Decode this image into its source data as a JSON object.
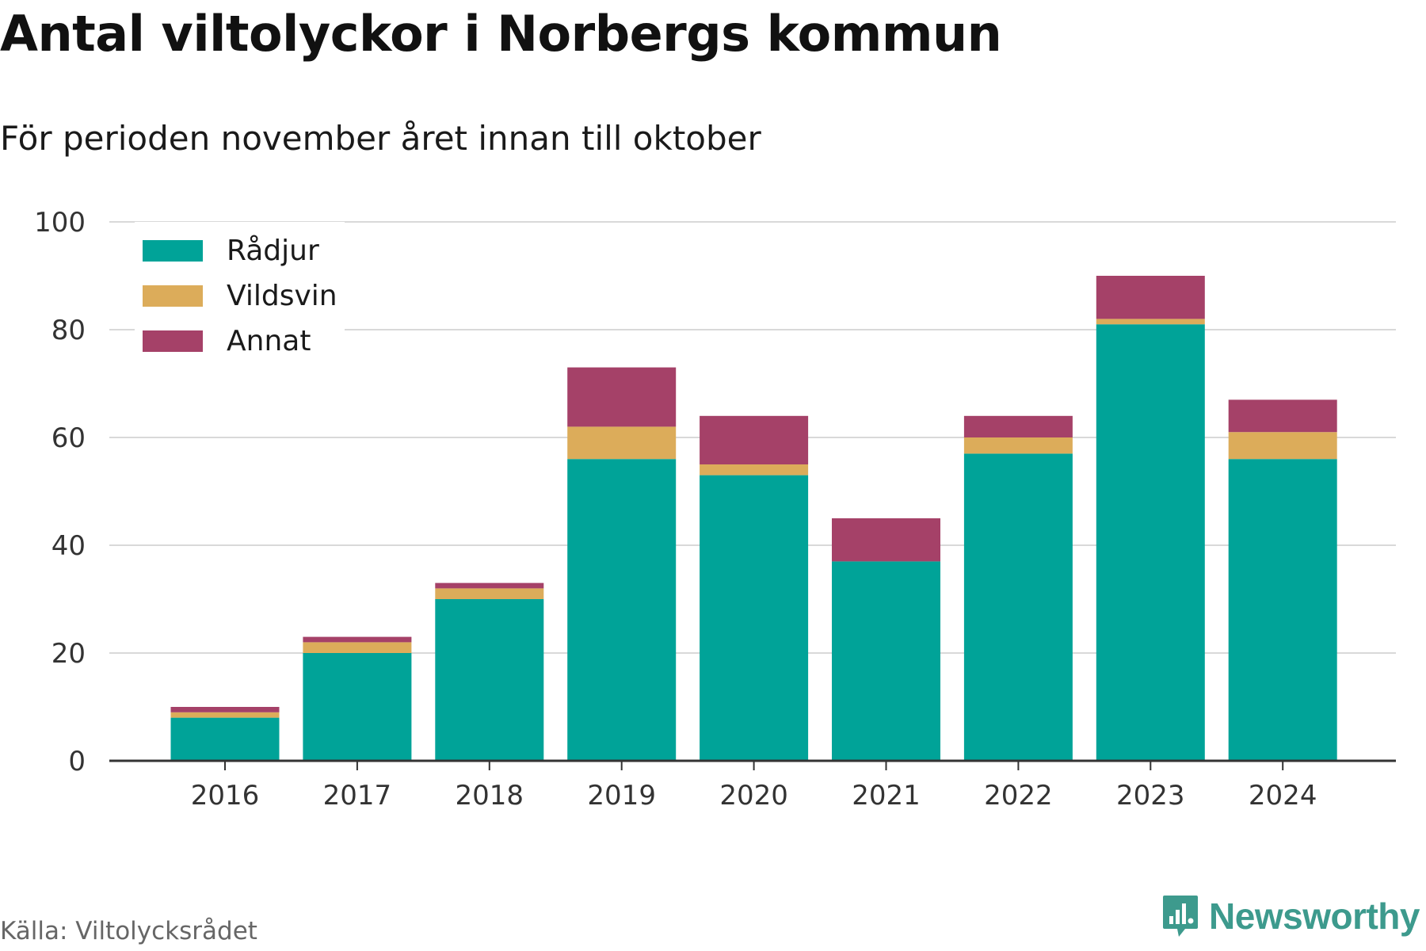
{
  "title": "Antal viltolyckor i Norbergs kommun",
  "subtitle": "För perioden november året innan till oktober",
  "source": "Källa: Viltolycksrådet",
  "brand": {
    "name": "Newsworthy",
    "icon": "newsworthy-logo-icon",
    "color": "#3d9a8d"
  },
  "chart_data": {
    "type": "bar",
    "stacked": true,
    "title": "Antal viltolyckor i Norbergs kommun",
    "subtitle": "För perioden november året innan till oktober",
    "categories": [
      "2016",
      "2017",
      "2018",
      "2019",
      "2020",
      "2021",
      "2022",
      "2023",
      "2024"
    ],
    "series": [
      {
        "name": "Rådjur",
        "color": "#00a398",
        "values": [
          8,
          20,
          30,
          56,
          53,
          37,
          57,
          81,
          56
        ]
      },
      {
        "name": "Vildsvin",
        "color": "#dcac5a",
        "values": [
          1,
          2,
          2,
          6,
          2,
          0,
          3,
          1,
          5
        ]
      },
      {
        "name": "Annat",
        "color": "#a54168",
        "values": [
          1,
          1,
          1,
          11,
          9,
          8,
          4,
          8,
          6
        ]
      }
    ],
    "ylim": [
      0,
      100
    ],
    "yticks": [
      "0",
      "20",
      "40",
      "60",
      "80",
      "100"
    ],
    "xlabel": "",
    "ylabel": "",
    "grid": true,
    "legend_position": "top-left"
  }
}
